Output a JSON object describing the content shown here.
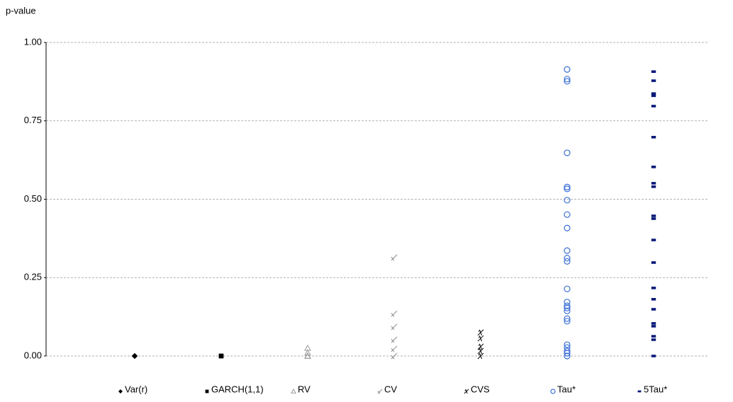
{
  "chart_data": {
    "type": "strip",
    "ylabel": "p-value",
    "ylim": [
      0,
      1
    ],
    "yticks": [
      {
        "value": 0,
        "label": "0.00"
      },
      {
        "value": 0.25,
        "label": "0.25"
      },
      {
        "value": 0.5,
        "label": "0.50"
      },
      {
        "value": 0.75,
        "label": "0.75"
      },
      {
        "value": 1,
        "label": "1.00"
      }
    ],
    "grid": true,
    "series": [
      {
        "name": "Var(r)",
        "color": "#000000",
        "marker": "diamond",
        "values": [
          0,
          0,
          0,
          0
        ]
      },
      {
        "name": "GARCH(1,1)",
        "color": "#000000",
        "marker": "square",
        "values": [
          0,
          0,
          0
        ]
      },
      {
        "name": "RV",
        "color": "#999999",
        "marker": "triangle",
        "values": [
          0.025,
          0.01,
          0,
          0
        ]
      },
      {
        "name": "CV",
        "color": "#888888",
        "marker": "cross",
        "values": [
          0.314,
          0.135,
          0.093,
          0.052,
          0.023,
          0
        ]
      },
      {
        "name": "CVS",
        "color": "#000000",
        "marker": "star",
        "values": [
          0.075,
          0.056,
          0.03,
          0.016,
          0
        ]
      },
      {
        "name": "Tau*",
        "color": "#3a6fd8",
        "marker": "circle",
        "values": [
          0.914,
          0.883,
          0.876,
          0.648,
          0.539,
          0.533,
          0.497,
          0.451,
          0.408,
          0.336,
          0.312,
          0.302,
          0.214,
          0.172,
          0.16,
          0.153,
          0.144,
          0.119,
          0.111,
          0.036,
          0.027,
          0.016,
          0.009,
          0
        ]
      },
      {
        "name": "5Tau*",
        "color": "#0a1a7a",
        "marker": "dash",
        "values": [
          0.907,
          0.878,
          0.837,
          0.83,
          0.797,
          0.698,
          0.603,
          0.551,
          0.54,
          0.447,
          0.438,
          0.37,
          0.298,
          0.217,
          0.181,
          0.149,
          0.104,
          0.095,
          0.063,
          0.052,
          0
        ]
      }
    ]
  }
}
